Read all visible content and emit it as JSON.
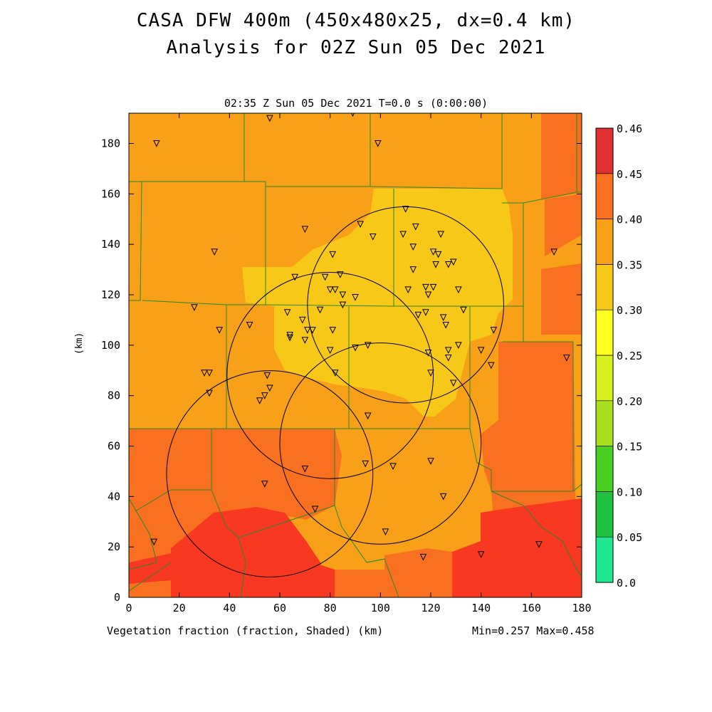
{
  "title_line1": "CASA DFW 400m (450x480x25, dx=0.4 km)",
  "title_line2": "Analysis for 02Z Sun 05 Dec 2021",
  "subtitle": "02:35 Z Sun 05 Dec 2021   T=0.0 s (0:00:00)",
  "bottom_label": "Vegetation fraction (fraction, Shaded)  (km)",
  "minmax": "Min=0.257 Max=0.458",
  "y_axis_label": "(km)",
  "x_ticks": [
    "0",
    "20",
    "40",
    "60",
    "80",
    "100",
    "120",
    "140",
    "160",
    "180"
  ],
  "y_ticks": [
    "0",
    "20",
    "40",
    "60",
    "80",
    "100",
    "120",
    "140",
    "160",
    "180"
  ],
  "colorbar": {
    "levels": [
      "0.0",
      "0.05",
      "0.10",
      "0.15",
      "0.20",
      "0.25",
      "0.30",
      "0.35",
      "0.40",
      "0.45",
      "0.46"
    ],
    "colors": [
      "#20e890",
      "#20c040",
      "#48d020",
      "#a8e020",
      "#d8f020",
      "#ffff20",
      "#f8c818",
      "#f8a018",
      "#f87020",
      "#f83820",
      "#e03030"
    ]
  },
  "radar_circles_km": [
    {
      "cx": 110,
      "cy": 116,
      "r": 39
    },
    {
      "cx": 80,
      "cy": 88,
      "r": 41
    },
    {
      "cx": 100,
      "cy": 61,
      "r": 40
    },
    {
      "cx": 56,
      "cy": 49,
      "r": 41
    }
  ],
  "stations_km": [
    [
      11,
      180
    ],
    [
      56,
      190
    ],
    [
      89,
      192
    ],
    [
      99,
      180
    ],
    [
      34,
      137
    ],
    [
      70,
      146
    ],
    [
      81,
      136
    ],
    [
      92,
      148
    ],
    [
      97,
      143
    ],
    [
      109,
      144
    ],
    [
      110,
      154
    ],
    [
      114,
      147
    ],
    [
      113,
      139
    ],
    [
      121,
      137
    ],
    [
      123,
      136
    ],
    [
      124,
      144
    ],
    [
      113,
      130
    ],
    [
      122,
      132
    ],
    [
      127,
      132
    ],
    [
      129,
      133
    ],
    [
      66,
      127
    ],
    [
      78,
      127
    ],
    [
      84,
      128
    ],
    [
      80,
      122
    ],
    [
      82,
      122
    ],
    [
      85,
      120
    ],
    [
      90,
      119
    ],
    [
      111,
      122
    ],
    [
      118,
      123
    ],
    [
      119,
      120
    ],
    [
      121,
      123
    ],
    [
      131,
      122
    ],
    [
      26,
      115
    ],
    [
      63,
      113
    ],
    [
      69,
      110
    ],
    [
      76,
      114
    ],
    [
      85,
      116
    ],
    [
      115,
      112
    ],
    [
      118,
      113
    ],
    [
      125,
      111
    ],
    [
      126,
      108
    ],
    [
      133,
      114
    ],
    [
      36,
      106
    ],
    [
      48,
      108
    ],
    [
      64,
      104
    ],
    [
      71,
      106
    ],
    [
      73,
      106
    ],
    [
      81,
      106
    ],
    [
      64,
      103
    ],
    [
      70,
      102
    ],
    [
      95,
      100
    ],
    [
      90,
      99
    ],
    [
      80,
      98
    ],
    [
      119,
      97
    ],
    [
      127,
      98
    ],
    [
      131,
      100
    ],
    [
      140,
      98
    ],
    [
      145,
      106
    ],
    [
      127,
      95
    ],
    [
      144,
      92
    ],
    [
      174,
      95
    ],
    [
      30,
      89
    ],
    [
      32,
      89
    ],
    [
      82,
      89
    ],
    [
      120,
      89
    ],
    [
      129,
      85
    ],
    [
      55,
      88
    ],
    [
      56,
      83
    ],
    [
      32,
      81
    ],
    [
      54,
      80
    ],
    [
      52,
      78
    ],
    [
      95,
      72
    ],
    [
      94,
      53
    ],
    [
      105,
      52
    ],
    [
      120,
      54
    ],
    [
      70,
      51
    ],
    [
      54,
      45
    ],
    [
      125,
      40
    ],
    [
      74,
      35
    ],
    [
      10,
      22
    ],
    [
      102,
      26
    ],
    [
      117,
      16
    ],
    [
      140,
      17
    ],
    [
      163,
      21
    ],
    [
      169,
      137
    ]
  ]
}
